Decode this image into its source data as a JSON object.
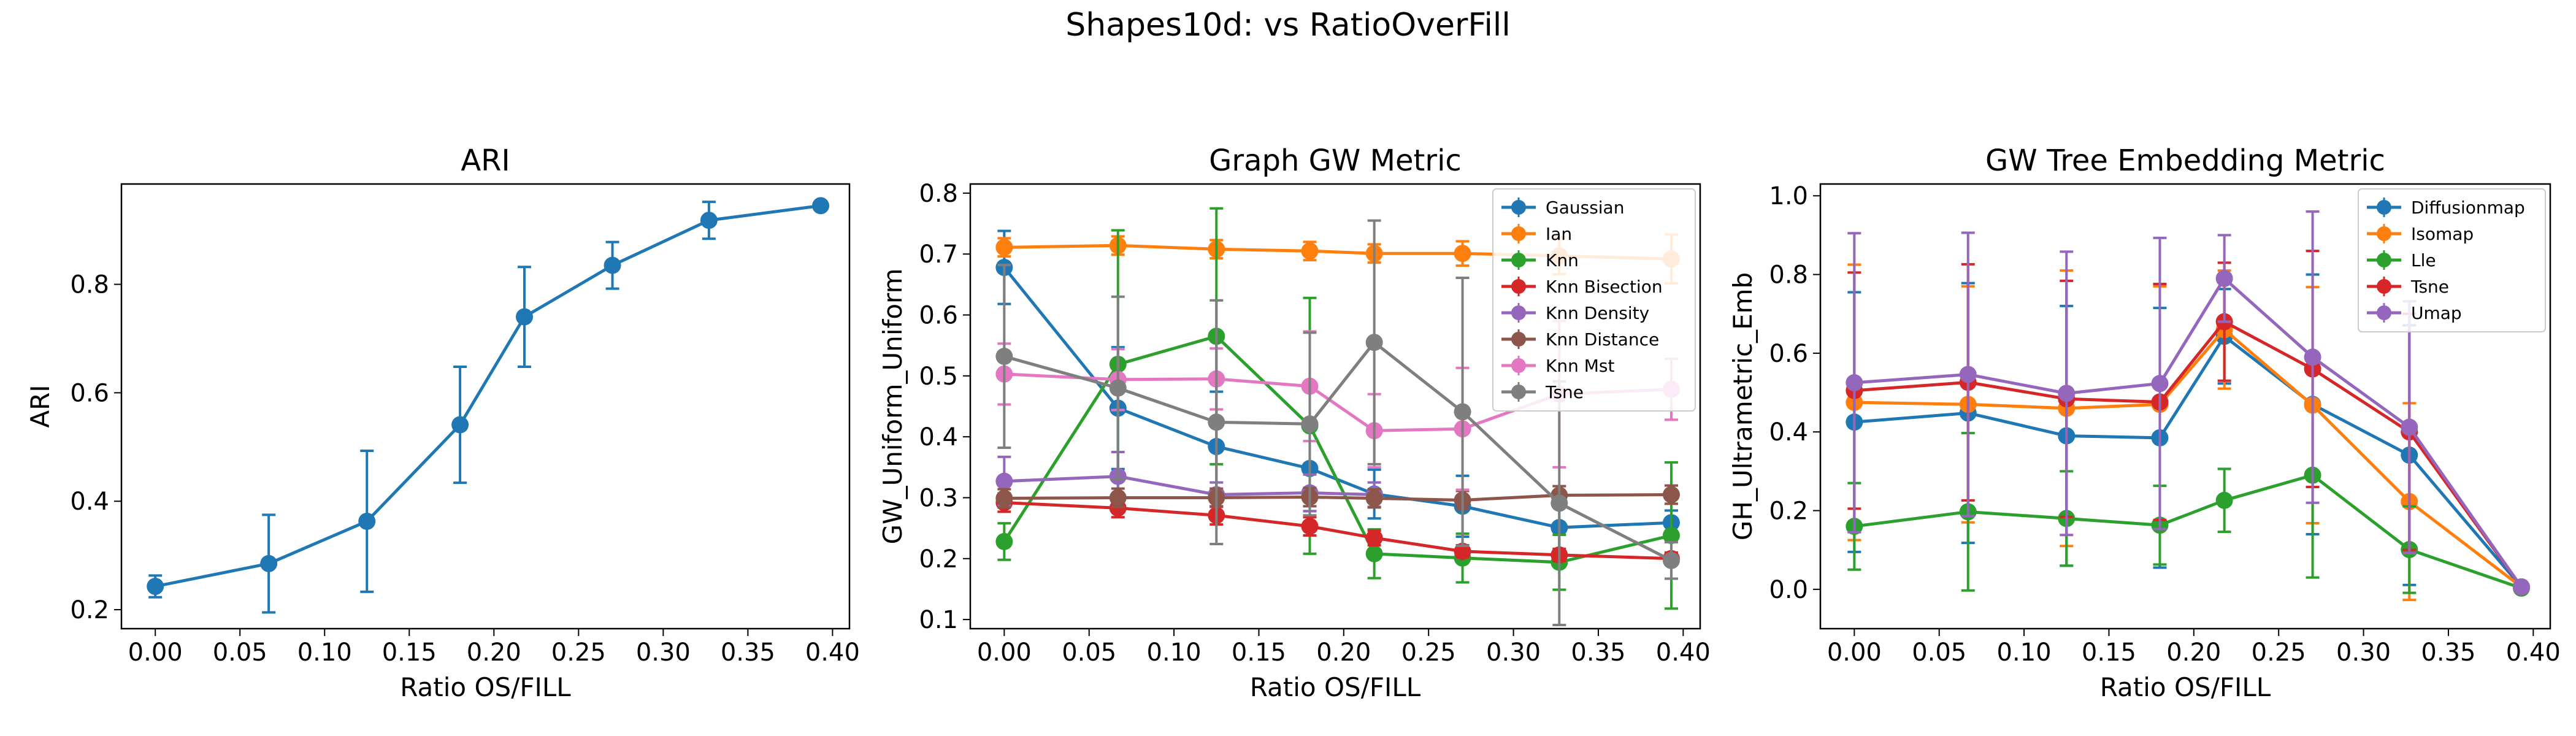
{
  "figure": {
    "suptitle": "Shapes10d: vs RatioOverFill"
  },
  "chart_data": [
    {
      "type": "line",
      "title": "ARI",
      "xlabel": "Ratio OS/FILL",
      "ylabel": "ARI",
      "xlim": [
        -0.02,
        0.41
      ],
      "ylim": [
        0.165,
        0.985
      ],
      "xticks": [
        0.0,
        0.05,
        0.1,
        0.15,
        0.2,
        0.25,
        0.3,
        0.35,
        0.4
      ],
      "xtick_labels": [
        "0.00",
        "0.05",
        "0.10",
        "0.15",
        "0.20",
        "0.25",
        "0.30",
        "0.35",
        "0.40"
      ],
      "yticks": [
        0.2,
        0.4,
        0.6,
        0.8
      ],
      "ytick_labels": [
        "0.2",
        "0.4",
        "0.6",
        "0.8"
      ],
      "legend": null,
      "x": [
        0.0,
        0.067,
        0.125,
        0.18,
        0.218,
        0.27,
        0.327,
        0.393
      ],
      "series": [
        {
          "name": "",
          "color": "#1f77b4",
          "values": [
            0.243,
            0.285,
            0.363,
            0.541,
            0.74,
            0.835,
            0.918,
            0.945
          ],
          "err": [
            0.02,
            0.09,
            0.13,
            0.107,
            0.092,
            0.043,
            0.034,
            0.006
          ]
        }
      ]
    },
    {
      "type": "line",
      "title": "Graph GW Metric",
      "xlabel": "Ratio OS/FILL",
      "ylabel": "GW_Uniform_Uniform",
      "xlim": [
        -0.02,
        0.41
      ],
      "ylim": [
        0.085,
        0.815
      ],
      "xticks": [
        0.0,
        0.05,
        0.1,
        0.15,
        0.2,
        0.25,
        0.3,
        0.35,
        0.4
      ],
      "xtick_labels": [
        "0.00",
        "0.05",
        "0.10",
        "0.15",
        "0.20",
        "0.25",
        "0.30",
        "0.35",
        "0.40"
      ],
      "yticks": [
        0.1,
        0.2,
        0.3,
        0.4,
        0.5,
        0.6,
        0.7,
        0.8
      ],
      "ytick_labels": [
        "0.1",
        "0.2",
        "0.3",
        "0.4",
        "0.5",
        "0.6",
        "0.7",
        "0.8"
      ],
      "legend": "top-right",
      "x": [
        0.0,
        0.067,
        0.125,
        0.18,
        0.218,
        0.27,
        0.327,
        0.393
      ],
      "series": [
        {
          "name": "Gaussian",
          "color": "#1f77b4",
          "values": [
            0.678,
            0.447,
            0.384,
            0.348,
            0.306,
            0.286,
            0.251,
            0.259
          ],
          "err": [
            0.06,
            0.1,
            0.09,
            0.07,
            0.04,
            0.05,
            0.04,
            0.02
          ]
        },
        {
          "name": "Ian",
          "color": "#ff7f0e",
          "values": [
            0.711,
            0.714,
            0.708,
            0.705,
            0.701,
            0.701,
            0.697,
            0.692
          ],
          "err": [
            0.015,
            0.015,
            0.015,
            0.015,
            0.015,
            0.02,
            0.03,
            0.04
          ]
        },
        {
          "name": "Knn",
          "color": "#2ca02c",
          "values": [
            0.228,
            0.519,
            0.565,
            0.418,
            0.208,
            0.201,
            0.194,
            0.238
          ],
          "err": [
            0.03,
            0.22,
            0.21,
            0.21,
            0.04,
            0.04,
            0.045,
            0.12
          ]
        },
        {
          "name": "Knn Bisection",
          "color": "#d62728",
          "values": [
            0.292,
            0.283,
            0.271,
            0.253,
            0.234,
            0.212,
            0.206,
            0.2
          ],
          "err": [
            0.015,
            0.015,
            0.015,
            0.015,
            0.012,
            0.01,
            0.01,
            0.01
          ]
        },
        {
          "name": "Knn Density",
          "color": "#9467bd",
          "values": [
            0.327,
            0.335,
            0.305,
            0.308,
            0.305,
            null,
            null,
            null
          ],
          "err": [
            0.04,
            0.04,
            0.02,
            0.03,
            0.02,
            null,
            null,
            null
          ]
        },
        {
          "name": "Knn Distance",
          "color": "#8c564b",
          "values": [
            0.299,
            0.3,
            0.3,
            0.301,
            0.299,
            0.296,
            0.304,
            0.305
          ],
          "err": [
            0.015,
            0.015,
            0.015,
            0.015,
            0.015,
            0.015,
            0.015,
            0.015
          ]
        },
        {
          "name": "Knn Mst",
          "color": "#e377c2",
          "values": [
            0.503,
            0.494,
            0.495,
            0.483,
            0.41,
            0.413,
            0.47,
            0.478
          ],
          "err": [
            0.05,
            0.05,
            0.05,
            0.09,
            0.06,
            0.1,
            0.12,
            0.05
          ]
        },
        {
          "name": "Tsne",
          "color": "#7f7f7f",
          "values": [
            0.532,
            0.48,
            0.424,
            0.421,
            0.555,
            0.441,
            0.291,
            0.197
          ],
          "err": [
            0.15,
            0.15,
            0.2,
            0.15,
            0.2,
            0.22,
            0.2,
            0.03
          ]
        }
      ]
    },
    {
      "type": "line",
      "title": "GW Tree Embedding Metric",
      "xlabel": "Ratio OS/FILL",
      "ylabel": "GH_Ultrametric_Emb",
      "xlim": [
        -0.02,
        0.41
      ],
      "ylim": [
        -0.1,
        1.03
      ],
      "xticks": [
        0.0,
        0.05,
        0.1,
        0.15,
        0.2,
        0.25,
        0.3,
        0.35,
        0.4
      ],
      "xtick_labels": [
        "0.00",
        "0.05",
        "0.10",
        "0.15",
        "0.20",
        "0.25",
        "0.30",
        "0.35",
        "0.40"
      ],
      "yticks": [
        0.0,
        0.2,
        0.4,
        0.6,
        0.8,
        1.0
      ],
      "ytick_labels": [
        "0.0",
        "0.2",
        "0.4",
        "0.6",
        "0.8",
        "1.0"
      ],
      "legend": "top-right",
      "x": [
        0.0,
        0.067,
        0.125,
        0.18,
        0.218,
        0.27,
        0.327,
        0.393
      ],
      "series": [
        {
          "name": "Diffusionmap",
          "color": "#1f77b4",
          "values": [
            0.425,
            0.448,
            0.39,
            0.385,
            0.643,
            0.47,
            0.341,
            0.006
          ],
          "err": [
            0.33,
            0.33,
            0.33,
            0.33,
            0.12,
            0.33,
            0.33,
            0.005
          ]
        },
        {
          "name": "Isomap",
          "color": "#ff7f0e",
          "values": [
            0.475,
            0.47,
            0.46,
            0.47,
            0.66,
            0.468,
            0.223,
            0.006
          ],
          "err": [
            0.35,
            0.3,
            0.35,
            0.3,
            0.15,
            0.3,
            0.25,
            0.005
          ]
        },
        {
          "name": "Lle",
          "color": "#2ca02c",
          "values": [
            0.16,
            0.197,
            0.18,
            0.163,
            0.226,
            0.29,
            0.101,
            0.003
          ],
          "err": [
            0.11,
            0.2,
            0.12,
            0.1,
            0.08,
            0.26,
            0.11,
            0.003
          ]
        },
        {
          "name": "Tsne",
          "color": "#d62728",
          "values": [
            0.505,
            0.526,
            0.484,
            0.476,
            0.68,
            0.56,
            0.4,
            0.006
          ],
          "err": [
            0.3,
            0.3,
            0.3,
            0.3,
            0.15,
            0.3,
            0.3,
            0.005
          ]
        },
        {
          "name": "Umap",
          "color": "#9467bd",
          "values": [
            0.525,
            0.546,
            0.498,
            0.523,
            0.79,
            0.59,
            0.412,
            0.006
          ],
          "err": [
            0.38,
            0.36,
            0.36,
            0.37,
            0.11,
            0.37,
            0.32,
            0.005
          ]
        }
      ]
    }
  ]
}
